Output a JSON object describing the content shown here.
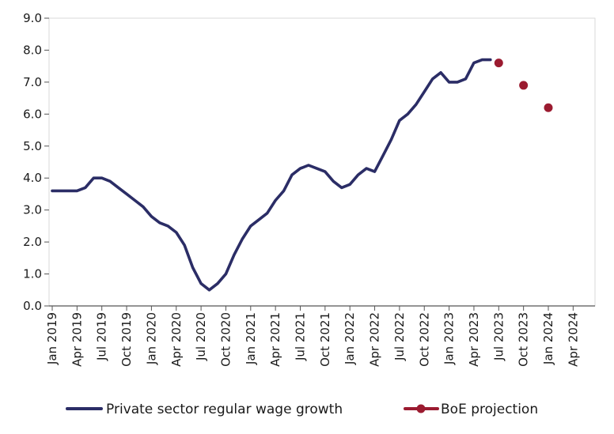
{
  "chart_data": {
    "type": "line",
    "title": "",
    "xlabel": "",
    "ylabel": "",
    "ylim": [
      0,
      9
    ],
    "y_ticks": [
      "0.0",
      "1.0",
      "2.0",
      "3.0",
      "4.0",
      "5.0",
      "6.0",
      "7.0",
      "8.0",
      "9.0"
    ],
    "x_tick_labels": [
      "Jan 2019",
      "Apr 2019",
      "Jul 2019",
      "Oct 2019",
      "Jan 2020",
      "Apr 2020",
      "Jul 2020",
      "Oct 2020",
      "Jan 2021",
      "Apr 2021",
      "Jul 2021",
      "Oct 2021",
      "Jan 2022",
      "Apr 2022",
      "Jul 2022",
      "Oct 2022",
      "Jan 2023",
      "Apr 2023",
      "Jul 2023",
      "Oct 2023",
      "Jan 2024",
      "Apr 2024"
    ],
    "x_months_total": 66,
    "series": [
      {
        "name": "Private sector regular wage growth",
        "color": "#2b2d66",
        "style": "line",
        "x": [
          0,
          1,
          2,
          3,
          4,
          5,
          6,
          7,
          8,
          9,
          10,
          11,
          12,
          13,
          14,
          15,
          16,
          17,
          18,
          19,
          20,
          21,
          22,
          23,
          24,
          25,
          26,
          27,
          28,
          29,
          30,
          31,
          32,
          33,
          34,
          35,
          36,
          37,
          38,
          39,
          40,
          41,
          42,
          43,
          44,
          45,
          46,
          47,
          48,
          49,
          50,
          51,
          52,
          53
        ],
        "values": [
          3.6,
          3.6,
          3.6,
          3.6,
          3.7,
          4.0,
          4.0,
          3.9,
          3.7,
          3.5,
          3.3,
          3.1,
          2.8,
          2.6,
          2.5,
          2.3,
          1.9,
          1.2,
          0.7,
          0.5,
          0.7,
          1.0,
          1.6,
          2.1,
          2.5,
          2.7,
          2.9,
          3.3,
          3.6,
          4.1,
          4.3,
          4.4,
          4.3,
          4.2,
          3.9,
          3.7,
          3.8,
          4.1,
          4.3,
          4.2,
          4.7,
          5.2,
          5.8,
          6.0,
          6.3,
          6.7,
          7.1,
          7.3,
          7.0,
          7.0,
          7.1,
          7.6,
          7.7,
          7.7
        ]
      },
      {
        "name": "BoE projection",
        "color": "#9b1b30",
        "style": "markers",
        "x": [
          54,
          57,
          60
        ],
        "values": [
          7.6,
          6.9,
          6.2
        ]
      }
    ],
    "legend_position": "bottom",
    "grid": false
  }
}
